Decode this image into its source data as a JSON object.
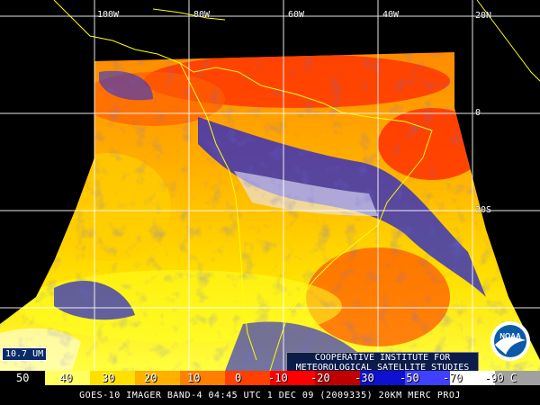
{
  "map": {
    "grid_labels": {
      "lon_100w": "100W",
      "lon_80w": "80W",
      "lon_60w": "60W",
      "lon_40w": "40W",
      "lat_20n": "20N",
      "lat_0": "0",
      "lat_20s": "20S"
    },
    "band_label": "10.7 UM",
    "institute": {
      "line1": "COOPERATIVE INSTITUTE FOR",
      "line2": "METEOROLOGICAL SATELLITE STUDIES"
    },
    "logo": {
      "text": "NOAA",
      "colors": {
        "ring": "#ffffff",
        "sky": "#0a5aa8",
        "bird": "#ffffff"
      }
    }
  },
  "scale": {
    "labels": [
      "50",
      "40",
      "30",
      "20",
      "10",
      "0",
      "-10",
      "-20",
      "-30",
      "-50",
      "-70",
      "-90 C"
    ],
    "colors": {
      "black": "#000000",
      "yellow": "#ffff00",
      "orange": "#ff8000",
      "red": "#ff0000",
      "blue": "#1010d0",
      "white": "#ffffff",
      "gray": "#a0a0a0"
    }
  },
  "footer": "GOES-10 IMAGER BAND-4 04:45 UTC 1 DEC 09 (2009335) 20KM MERC PROJ"
}
